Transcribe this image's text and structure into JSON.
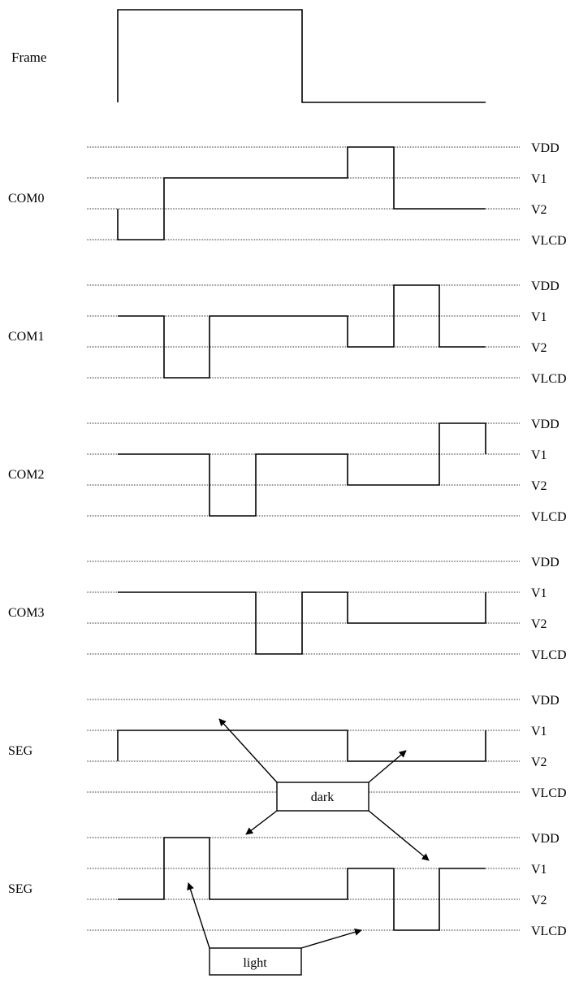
{
  "frame_label": "Frame",
  "level_labels": [
    "VDD",
    "V1",
    "V2",
    "VLCD"
  ],
  "rows": [
    {
      "id": "com0",
      "label": "COM0",
      "levels": [
        "V2",
        "VLCD",
        "V1",
        "V1",
        "V1",
        "V1",
        "VDD",
        "V2",
        "V2",
        "V2",
        "V2"
      ]
    },
    {
      "id": "com1",
      "label": "COM1",
      "levels": [
        "V1",
        "V1",
        "VLCD",
        "V1",
        "V1",
        "V1",
        "V2",
        "VDD",
        "V2",
        "V2",
        "V2"
      ]
    },
    {
      "id": "com2",
      "label": "COM2",
      "levels": [
        "V1",
        "V1",
        "V1",
        "VLCD",
        "V1",
        "V1",
        "V2",
        "V2",
        "VDD",
        "V2",
        "V1"
      ]
    },
    {
      "id": "com3",
      "label": "COM3",
      "levels": [
        "V1",
        "V1",
        "V1",
        "V1",
        "VLCD",
        "V1",
        "V2",
        "V2",
        "V2",
        "VDD",
        "V1"
      ]
    },
    {
      "id": "seg1",
      "label": "SEG",
      "levels": [
        "V2",
        "V1",
        "V1",
        "V1",
        "V1",
        "V1",
        "V2",
        "V2",
        "V2",
        "V2",
        "V1"
      ]
    },
    {
      "id": "seg2",
      "label": "SEG",
      "levels": [
        "V2",
        "V2",
        "VDD",
        "V2",
        "V2",
        "V2",
        "V1",
        "VLCD",
        "V1",
        "V1",
        "V1"
      ]
    }
  ],
  "annotations": {
    "dark": "dark",
    "light": "light"
  },
  "colors": {
    "line": "#000000",
    "gridline": "#333333",
    "background": "#ffffff"
  }
}
